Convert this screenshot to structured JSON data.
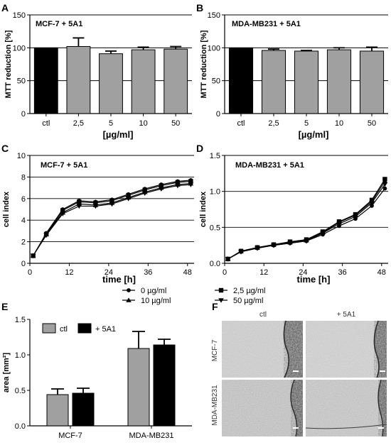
{
  "panels": {
    "A": "A",
    "B": "B",
    "C": "C",
    "D": "D",
    "E": "E",
    "F": "F"
  },
  "colors": {
    "ctl_bar": "#000000",
    "treated_bar": "#a0a0a0",
    "e_ctl": "#a0a0a0",
    "e_5a1": "#000000"
  },
  "chart_data": [
    {
      "id": "A",
      "type": "bar",
      "title": "MCF-7 + 5A1",
      "ylabel": "MTT reduction [%]",
      "xlabel": "[µg/ml]",
      "ylim": [
        0,
        150
      ],
      "yticks": [
        0,
        50,
        100,
        150
      ],
      "categories": [
        "ctl",
        "2,5",
        "5",
        "10",
        "50"
      ],
      "values": [
        100,
        102,
        91,
        97,
        98
      ],
      "errors": [
        0,
        13,
        4,
        4,
        4
      ],
      "grid": true
    },
    {
      "id": "B",
      "type": "bar",
      "title": "MDA-MB231 + 5A1",
      "ylabel": "MTT reduction [%]",
      "xlabel": "[µg/ml]",
      "ylim": [
        0,
        150
      ],
      "yticks": [
        0,
        50,
        100,
        150
      ],
      "categories": [
        "ctl",
        "2,5",
        "5",
        "10",
        "50"
      ],
      "values": [
        100,
        96,
        95,
        97,
        95
      ],
      "errors": [
        0,
        2,
        1,
        3,
        6
      ],
      "grid": true
    },
    {
      "id": "C",
      "type": "line",
      "title": "MCF-7 + 5A1",
      "ylabel": "cell index",
      "xlabel": "time [h]",
      "ylim": [
        0,
        10
      ],
      "yticks": [
        0,
        2,
        4,
        6,
        8,
        10
      ],
      "xlim": [
        0,
        50
      ],
      "xticks": [
        0,
        12,
        24,
        36,
        48
      ],
      "grid": true,
      "series": [
        {
          "name": "0 µg/ml",
          "marker": "circle",
          "x": [
            1,
            5,
            10,
            15,
            20,
            25,
            30,
            35,
            40,
            45,
            49
          ],
          "y": [
            0.7,
            2.8,
            5.0,
            5.8,
            5.7,
            5.9,
            6.4,
            6.9,
            7.3,
            7.6,
            7.7
          ]
        },
        {
          "name": "2,5 µg/ml",
          "marker": "square",
          "x": [
            1,
            5,
            10,
            15,
            20,
            25,
            30,
            35,
            40,
            45,
            49
          ],
          "y": [
            0.7,
            2.7,
            4.9,
            5.7,
            5.6,
            5.8,
            6.3,
            6.8,
            7.2,
            7.5,
            7.6
          ]
        },
        {
          "name": "10 µg/ml",
          "marker": "triangle-up",
          "x": [
            1,
            5,
            10,
            15,
            20,
            25,
            30,
            35,
            40,
            45,
            49
          ],
          "y": [
            0.7,
            2.7,
            4.7,
            5.5,
            5.4,
            5.6,
            6.1,
            6.6,
            7.0,
            7.3,
            7.4
          ]
        },
        {
          "name": "50 µg/ml",
          "marker": "triangle-down",
          "x": [
            1,
            5,
            10,
            15,
            20,
            25,
            30,
            35,
            40,
            45,
            49
          ],
          "y": [
            0.7,
            2.6,
            4.6,
            5.3,
            5.3,
            5.5,
            6.0,
            6.5,
            6.9,
            7.2,
            7.3
          ]
        }
      ]
    },
    {
      "id": "D",
      "type": "line",
      "title": "MDA-MB231 + 5A1",
      "ylabel": "cell index",
      "xlabel": "time [h]",
      "ylim": [
        0,
        1.5
      ],
      "yticks": [
        0.0,
        0.5,
        1.0,
        1.5
      ],
      "yticklabels": [
        "0.0",
        "0.5",
        "1.0",
        "1.5"
      ],
      "xlim": [
        0,
        50
      ],
      "xticks": [
        0,
        12,
        24,
        36,
        48
      ],
      "grid": true,
      "series": [
        {
          "name": "0 µg/ml",
          "marker": "circle",
          "x": [
            1,
            5,
            10,
            15,
            20,
            25,
            30,
            35,
            40,
            45,
            49
          ],
          "y": [
            0.06,
            0.16,
            0.21,
            0.25,
            0.28,
            0.31,
            0.4,
            0.52,
            0.62,
            0.8,
            1.04
          ]
        },
        {
          "name": "2,5 µg/ml",
          "marker": "square",
          "x": [
            1,
            5,
            10,
            15,
            20,
            25,
            30,
            35,
            40,
            45,
            49
          ],
          "y": [
            0.06,
            0.17,
            0.22,
            0.26,
            0.3,
            0.33,
            0.44,
            0.58,
            0.68,
            0.88,
            1.17
          ]
        },
        {
          "name": "10 µg/ml",
          "marker": "triangle-up",
          "x": [
            1,
            5,
            10,
            15,
            20,
            25,
            30,
            35,
            40,
            45,
            49
          ],
          "y": [
            0.06,
            0.17,
            0.22,
            0.26,
            0.29,
            0.32,
            0.43,
            0.57,
            0.67,
            0.86,
            1.14
          ]
        },
        {
          "name": "50 µg/ml",
          "marker": "triangle-down",
          "x": [
            1,
            5,
            10,
            15,
            20,
            25,
            30,
            35,
            40,
            45,
            49
          ],
          "y": [
            0.06,
            0.16,
            0.21,
            0.25,
            0.28,
            0.31,
            0.42,
            0.55,
            0.65,
            0.84,
            1.1
          ]
        }
      ]
    },
    {
      "id": "E",
      "type": "bar",
      "ylabel": "area [mm²]",
      "ylim": [
        0,
        1.5
      ],
      "yticks": [
        0.0,
        0.5,
        1.0,
        1.5
      ],
      "yticklabels": [
        "0.0",
        "0.5",
        "1.0",
        "1.5"
      ],
      "categories": [
        "MCF-7",
        "MDA-MB231"
      ],
      "legend_position": "top-left",
      "series": [
        {
          "name": "ctl",
          "values": [
            0.44,
            1.09
          ],
          "errors": [
            0.08,
            0.24
          ]
        },
        {
          "name": "+ 5A1",
          "values": [
            0.46,
            1.14
          ],
          "errors": [
            0.07,
            0.08
          ]
        }
      ]
    }
  ],
  "legend_cd": [
    "0 µg/ml",
    "2,5 µg/ml",
    "10 µg/ml",
    "50 µg/ml"
  ],
  "micrographs": {
    "col_labels": [
      "ctl",
      "+ 5A1"
    ],
    "row_labels": [
      "MCF-7",
      "MDA-MB231"
    ]
  }
}
